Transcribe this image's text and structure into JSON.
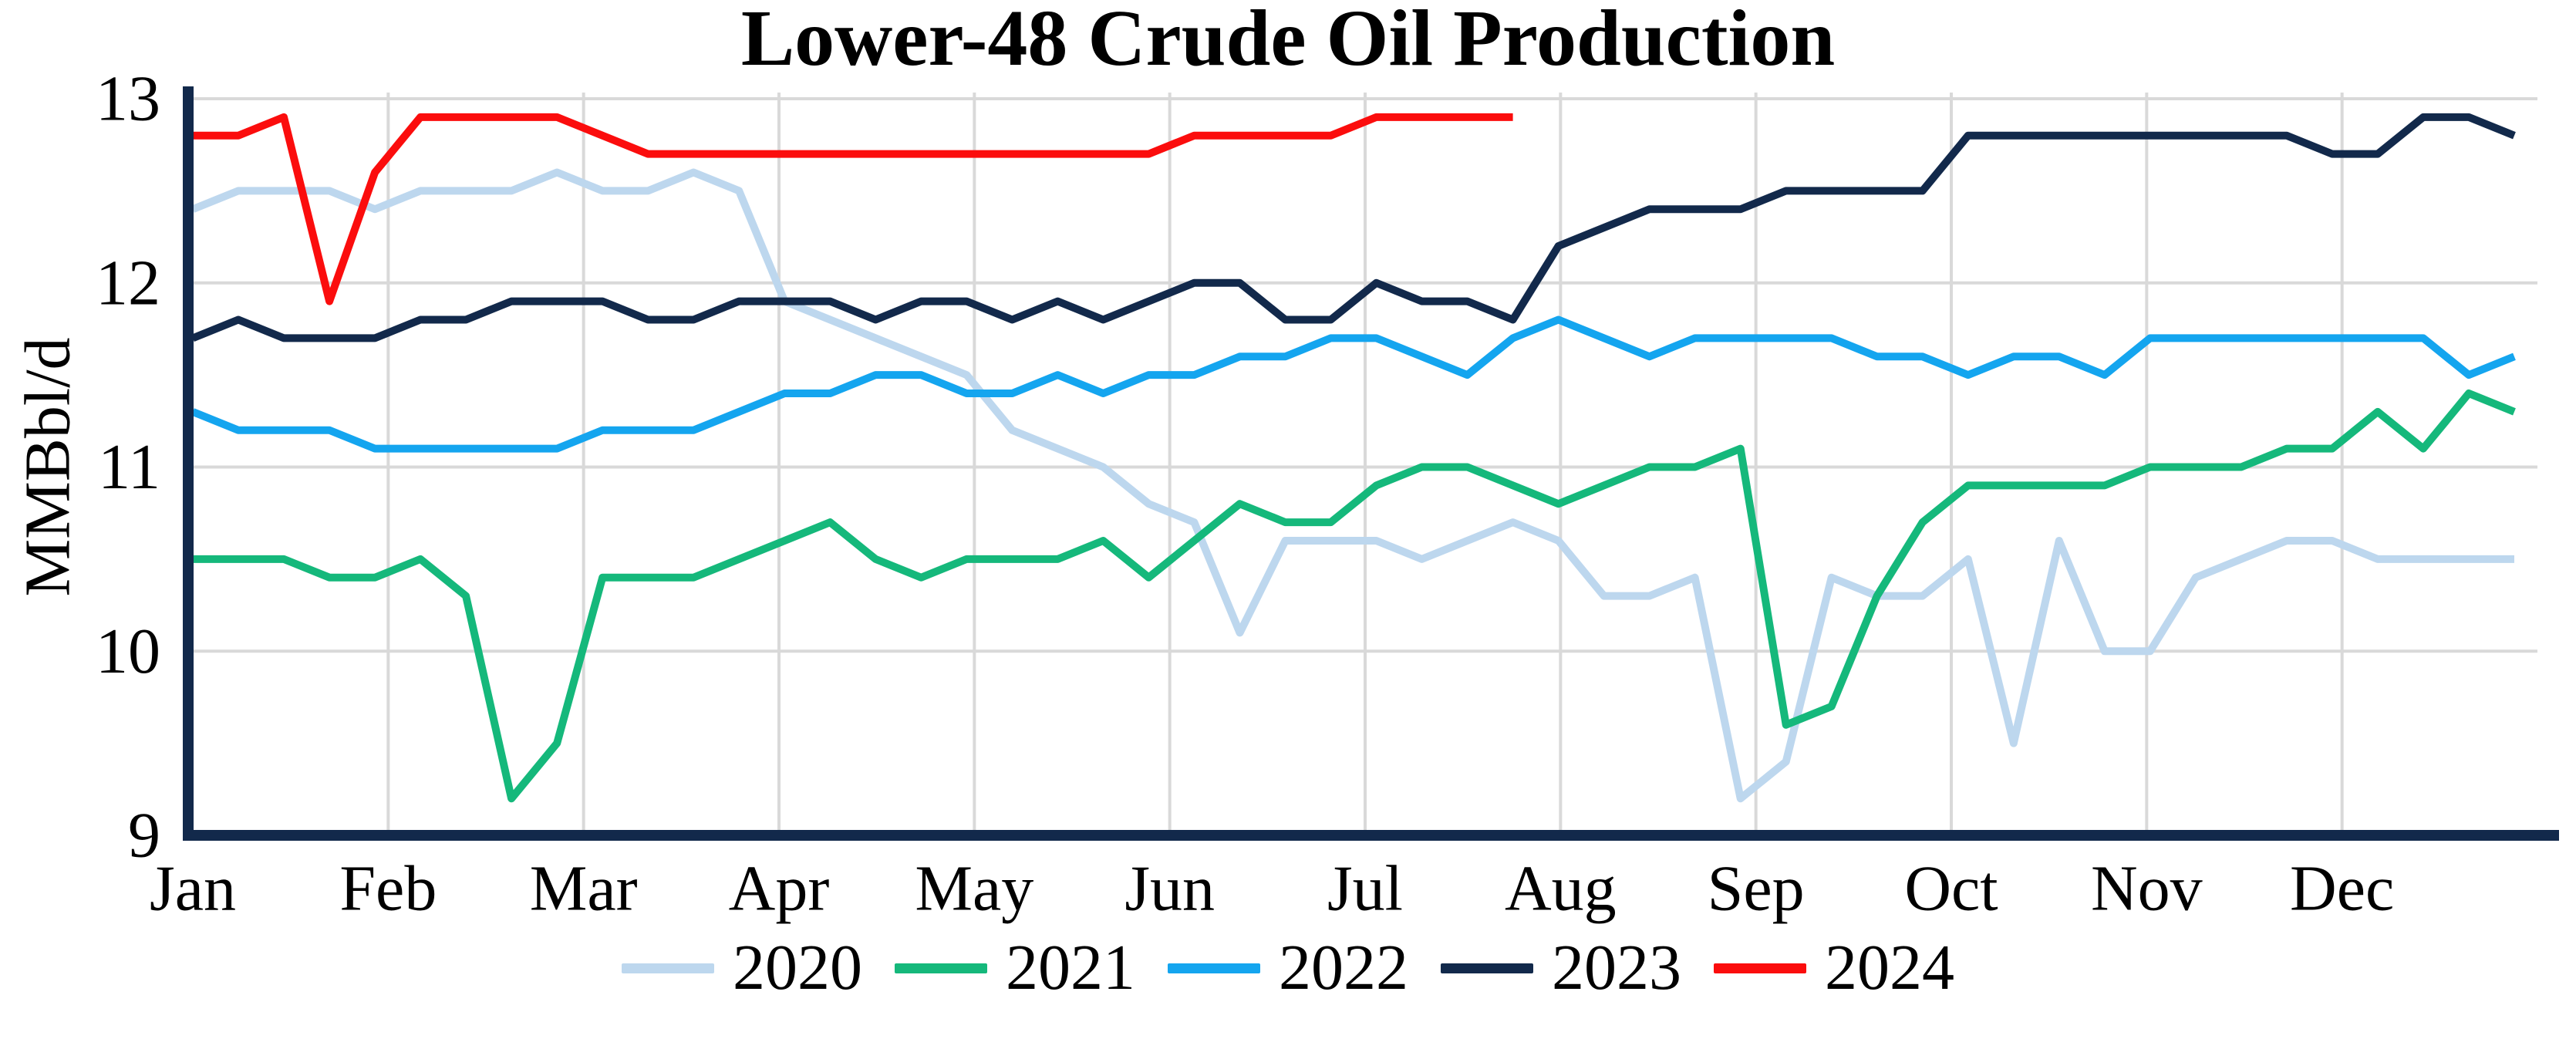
{
  "chart_data": {
    "type": "line",
    "title": "Lower-48 Crude Oil Production",
    "ylabel": "MMBbl/d",
    "xlabel": "",
    "x_tick_labels": [
      "Jan",
      "Feb",
      "Mar",
      "Apr",
      "May",
      "Jun",
      "Jul",
      "Aug",
      "Sep",
      "Oct",
      "Nov",
      "Dec"
    ],
    "y_tick_labels": [
      "9",
      "10",
      "11",
      "12",
      "13"
    ],
    "ylim": [
      9,
      13
    ],
    "x_unit": "week-of-year",
    "points_per_full_year": 52,
    "grid": true,
    "legend_position": "bottom",
    "colors": {
      "axis": "#12294b",
      "grid": "#d9d9d9",
      "background": "#ffffff",
      "text": "#000000"
    },
    "series": [
      {
        "name": "2020",
        "color": "#bdd7ee",
        "values": [
          12.4,
          12.5,
          12.5,
          12.5,
          12.4,
          12.5,
          12.5,
          12.5,
          12.6,
          12.5,
          12.5,
          12.6,
          12.5,
          11.9,
          11.8,
          11.7,
          11.6,
          11.5,
          11.2,
          11.1,
          11.0,
          10.8,
          10.7,
          10.1,
          10.6,
          10.6,
          10.6,
          10.5,
          10.6,
          10.7,
          10.6,
          10.3,
          10.3,
          10.4,
          9.2,
          9.4,
          10.4,
          10.3,
          10.3,
          10.5,
          9.5,
          10.6,
          10.0,
          10.0,
          10.4,
          10.5,
          10.6,
          10.6,
          10.5,
          10.5,
          10.5,
          10.5
        ]
      },
      {
        "name": "2021",
        "color": "#15b87b",
        "values": [
          10.5,
          10.5,
          10.5,
          10.4,
          10.4,
          10.5,
          10.3,
          9.2,
          9.5,
          10.4,
          10.4,
          10.4,
          10.5,
          10.6,
          10.7,
          10.5,
          10.4,
          10.5,
          10.5,
          10.5,
          10.6,
          10.4,
          10.6,
          10.8,
          10.7,
          10.7,
          10.9,
          11.0,
          11.0,
          10.9,
          10.8,
          10.9,
          11.0,
          11.0,
          11.1,
          9.6,
          9.7,
          10.3,
          10.7,
          10.9,
          10.9,
          10.9,
          10.9,
          11.0,
          11.0,
          11.0,
          11.1,
          11.1,
          11.3,
          11.1,
          11.4,
          11.3
        ]
      },
      {
        "name": "2022",
        "color": "#14a5ef",
        "values": [
          11.3,
          11.2,
          11.2,
          11.2,
          11.1,
          11.1,
          11.1,
          11.1,
          11.1,
          11.2,
          11.2,
          11.2,
          11.3,
          11.4,
          11.4,
          11.5,
          11.5,
          11.4,
          11.4,
          11.5,
          11.4,
          11.5,
          11.5,
          11.6,
          11.6,
          11.7,
          11.7,
          11.6,
          11.5,
          11.7,
          11.8,
          11.7,
          11.6,
          11.7,
          11.7,
          11.7,
          11.7,
          11.6,
          11.6,
          11.5,
          11.6,
          11.6,
          11.5,
          11.7,
          11.7,
          11.7,
          11.7,
          11.7,
          11.7,
          11.7,
          11.5,
          11.6
        ]
      },
      {
        "name": "2023",
        "color": "#12294b",
        "values": [
          11.7,
          11.8,
          11.7,
          11.7,
          11.7,
          11.8,
          11.8,
          11.9,
          11.9,
          11.9,
          11.8,
          11.8,
          11.9,
          11.9,
          11.9,
          11.8,
          11.9,
          11.9,
          11.8,
          11.9,
          11.8,
          11.9,
          12.0,
          12.0,
          11.8,
          11.8,
          12.0,
          11.9,
          11.9,
          11.8,
          12.2,
          12.3,
          12.4,
          12.4,
          12.4,
          12.5,
          12.5,
          12.5,
          12.5,
          12.8,
          12.8,
          12.8,
          12.8,
          12.8,
          12.8,
          12.8,
          12.8,
          12.7,
          12.7,
          12.9,
          12.9,
          12.8
        ]
      },
      {
        "name": "2024",
        "color": "#fb0d0d",
        "values": [
          12.8,
          12.8,
          12.9,
          11.9,
          12.6,
          12.9,
          12.9,
          12.9,
          12.9,
          12.8,
          12.7,
          12.7,
          12.7,
          12.7,
          12.7,
          12.7,
          12.7,
          12.7,
          12.7,
          12.7,
          12.7,
          12.7,
          12.8,
          12.8,
          12.8,
          12.8,
          12.9,
          12.9,
          12.9,
          12.9
        ]
      }
    ]
  }
}
